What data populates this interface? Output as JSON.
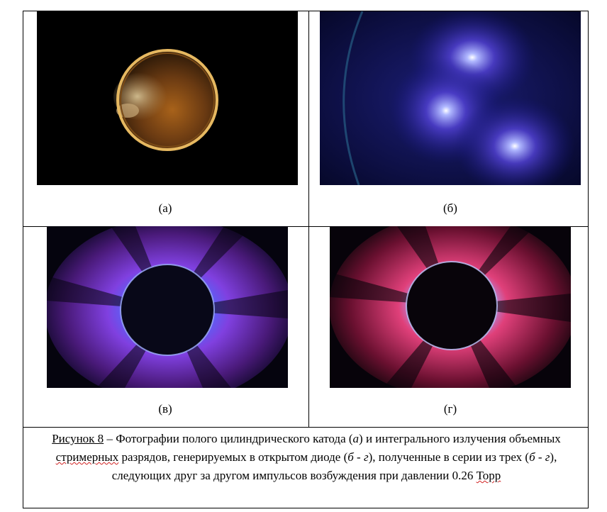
{
  "panels": {
    "a": {
      "label": "(а)"
    },
    "b": {
      "label": "(б)"
    },
    "v": {
      "label": "(в)"
    },
    "g": {
      "label": "(г)"
    }
  },
  "caption": {
    "figure_ref": "Рисунок  8",
    "part1": " – Фотографии полого цилиндрического катода (",
    "a_it": "а",
    "part2": ") и интегрального излучения объемных ",
    "wavy1": "стримерных",
    "part3": " разрядов, генерируемых в открытом диоде (",
    "bg_it1": "б - г",
    "part4": "), полученные в серии из трех (",
    "bg_it2": "б - г",
    "part5": "), следующих друг за другом импульсов возбуждения при давлении 0.26 ",
    "wavy2": "Торр"
  },
  "colors": {
    "border": "#000000",
    "ring_gold": "#d8a850",
    "discharge_blue": "#3040c8",
    "discharge_violet": "#a030d0",
    "discharge_pink": "#e0306a",
    "spell_underline": "#d02020"
  }
}
